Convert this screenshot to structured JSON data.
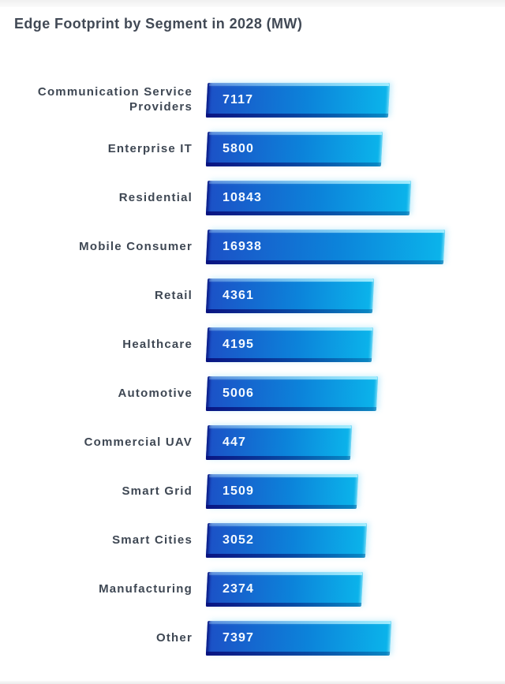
{
  "chart_data": {
    "type": "bar",
    "orientation": "horizontal",
    "title": "Edge Footprint by Segment in 2028 (MW)",
    "unit": "MW",
    "categories": [
      "Communication Service Providers",
      "Enterprise IT",
      "Residential",
      "Mobile Consumer",
      "Retail",
      "Healthcare",
      "Automotive",
      "Commercial UAV",
      "Smart Grid",
      "Smart Cities",
      "Manufacturing",
      "Other"
    ],
    "values": [
      7117,
      5800,
      10843,
      16938,
      4361,
      4195,
      5006,
      447,
      1509,
      3052,
      2374,
      7397
    ],
    "value_labels": "inside-bar-left",
    "legend": "none",
    "grid": "off",
    "axes_ticks": "none",
    "colors": {
      "bar_gradient_left": "#1c50c6",
      "bar_gradient_mid": "#0c83da",
      "bar_gradient_right": "#0bb5eb",
      "bar_bevel_dark": "#0a1684",
      "bar_bevel_light": "#aaf0ff",
      "title_text": "#414955",
      "category_text": "#3e4753",
      "value_text": "#f4faff",
      "background": "#ffffff"
    }
  }
}
